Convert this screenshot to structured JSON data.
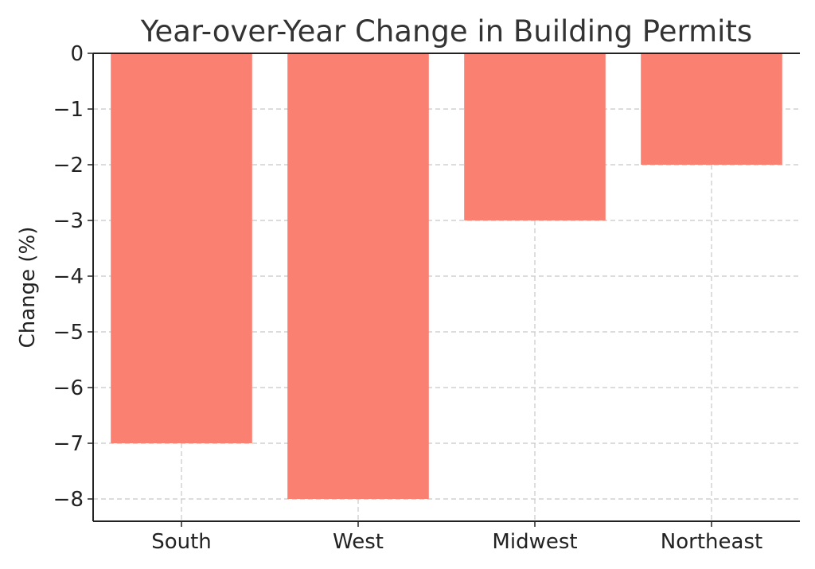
{
  "chart_data": {
    "type": "bar",
    "title": "Year-over-Year Change in Building Permits",
    "xlabel": "",
    "ylabel": "Change (%)",
    "categories": [
      "South",
      "West",
      "Midwest",
      "Northeast"
    ],
    "values": [
      -7,
      -8,
      -3,
      -2
    ],
    "ylim": [
      -8.4,
      0
    ],
    "yticks": [
      0,
      -1,
      -2,
      -3,
      -4,
      -5,
      -6,
      -7,
      -8
    ],
    "ytick_labels": [
      "0",
      "−1",
      "−2",
      "−3",
      "−4",
      "−5",
      "−6",
      "−7",
      "−8"
    ],
    "bar_color": "#fa8072",
    "grid": true
  }
}
